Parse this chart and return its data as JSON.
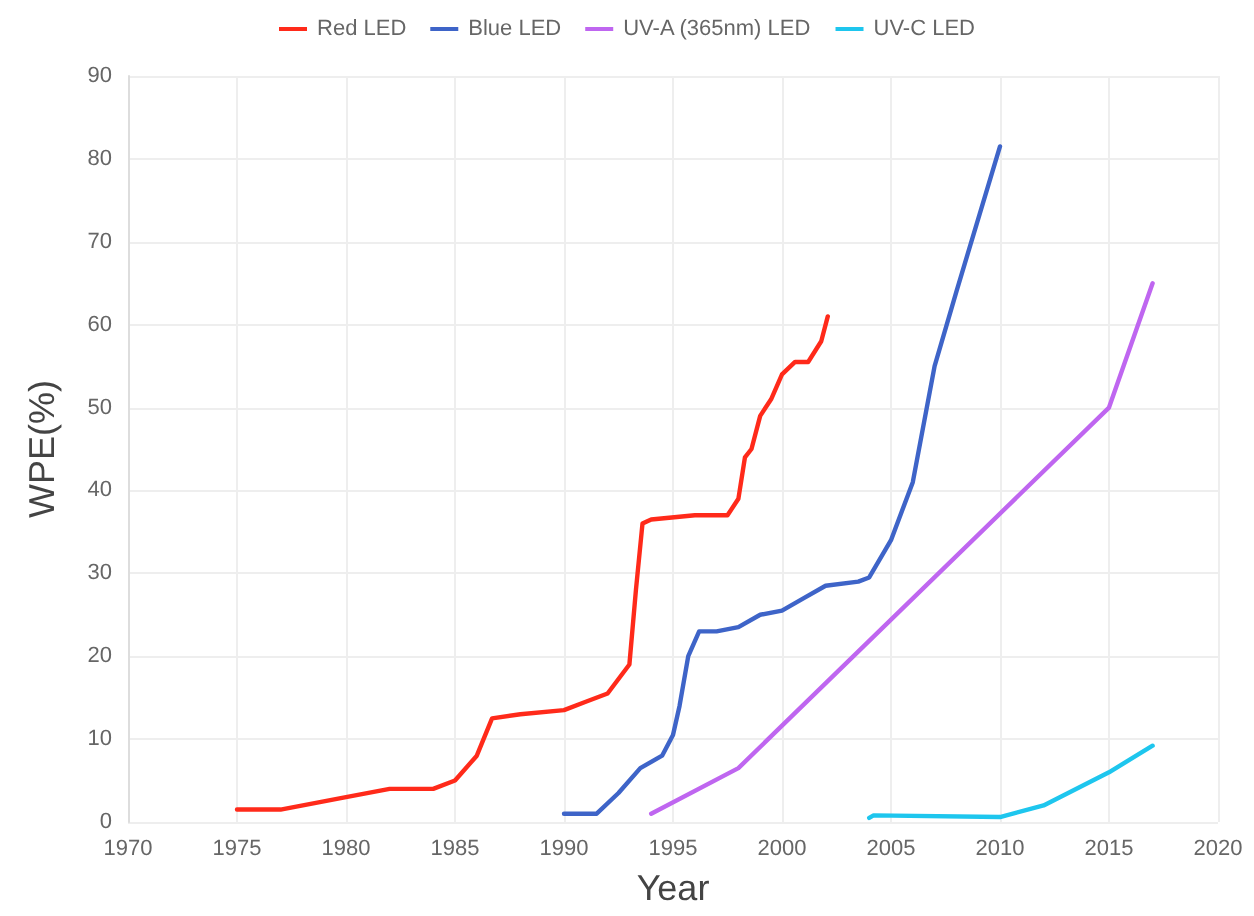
{
  "chart_data": {
    "type": "line",
    "xlabel": "Year",
    "ylabel": "WPE(%)",
    "xlim": [
      1970,
      2020
    ],
    "xticks": [
      1970,
      1975,
      1980,
      1985,
      1990,
      1995,
      2000,
      2005,
      2010,
      2015,
      2020
    ],
    "ylim": [
      0,
      90
    ],
    "yticks": [
      0,
      10,
      20,
      30,
      40,
      50,
      60,
      70,
      80,
      90
    ],
    "grid": true,
    "legend": "top",
    "marker": "none",
    "series": [
      {
        "name": "Red LED",
        "color": "#ff2a1a",
        "x": [
          1975,
          1977,
          1980,
          1982,
          1984,
          1985,
          1986,
          1986.7,
          1988,
          1990,
          1991,
          1992,
          1993,
          1993.3,
          1993.6,
          1994,
          1996,
          1997.5,
          1998,
          1998.3,
          1998.6,
          1999,
          1999.5,
          2000,
          2000.6,
          2001.2,
          2001.8,
          2002.1
        ],
        "values": [
          1.5,
          1.5,
          3,
          4,
          4,
          5,
          8,
          12.5,
          13,
          13.5,
          14.5,
          15.5,
          19,
          28,
          36,
          36.5,
          37,
          37,
          39,
          44,
          45,
          49,
          51,
          54,
          55.5,
          55.5,
          58,
          61
        ]
      },
      {
        "name": "Blue LED",
        "color": "#3e64c8",
        "x": [
          1990,
          1991.5,
          1992.5,
          1993.5,
          1994.5,
          1995,
          1995.3,
          1995.7,
          1996.2,
          1997,
          1998,
          1999,
          2000,
          2001,
          2002,
          2003.5,
          2004,
          2005,
          2006,
          2007,
          2008,
          2010
        ],
        "values": [
          1,
          1,
          3.5,
          6.5,
          8,
          10.5,
          14,
          20,
          23,
          23,
          23.5,
          25,
          25.5,
          27,
          28.5,
          29,
          29.5,
          34,
          41,
          55,
          64,
          81.5
        ]
      },
      {
        "name": "UV-A (365nm) LED",
        "color": "#bf66f0",
        "x": [
          1994,
          1998,
          2015,
          2017
        ],
        "values": [
          1,
          6.5,
          50,
          65
        ]
      },
      {
        "name": "UV-C LED",
        "color": "#1ec6ee",
        "x": [
          2004,
          2004.2,
          2010,
          2012,
          2015,
          2017
        ],
        "values": [
          0.5,
          0.8,
          0.6,
          2,
          6,
          9.2
        ]
      }
    ]
  }
}
